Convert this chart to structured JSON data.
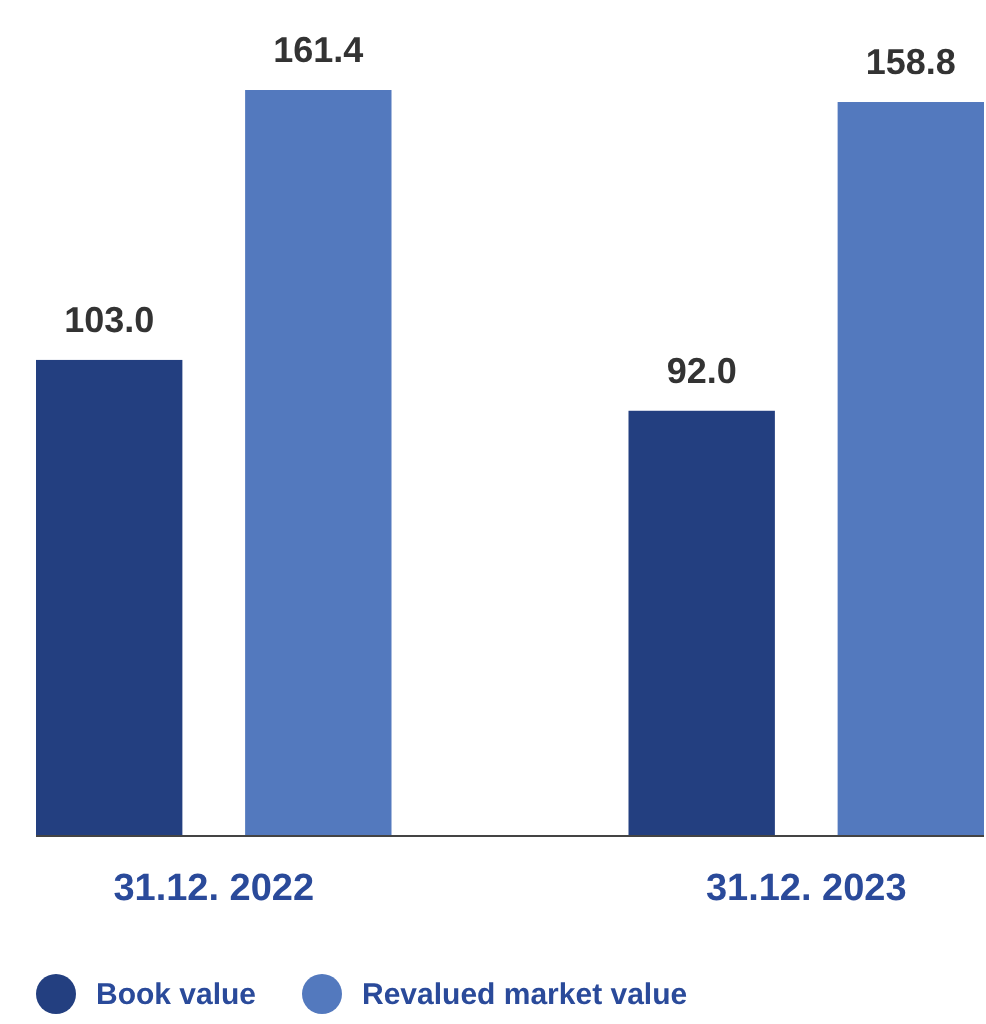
{
  "chart_data": {
    "type": "bar",
    "categories": [
      "31.12. 2022",
      "31.12. 2023"
    ],
    "series": [
      {
        "name": "Book value",
        "color": "#233f80",
        "values": [
          103.0,
          92.0
        ],
        "value_labels": [
          "103.0",
          "92.0"
        ]
      },
      {
        "name": "Revalued market value",
        "color": "#5379be",
        "values": [
          161.4,
          158.8
        ],
        "value_labels": [
          "161.4",
          "158.8"
        ]
      }
    ],
    "legend": "bottom left"
  }
}
